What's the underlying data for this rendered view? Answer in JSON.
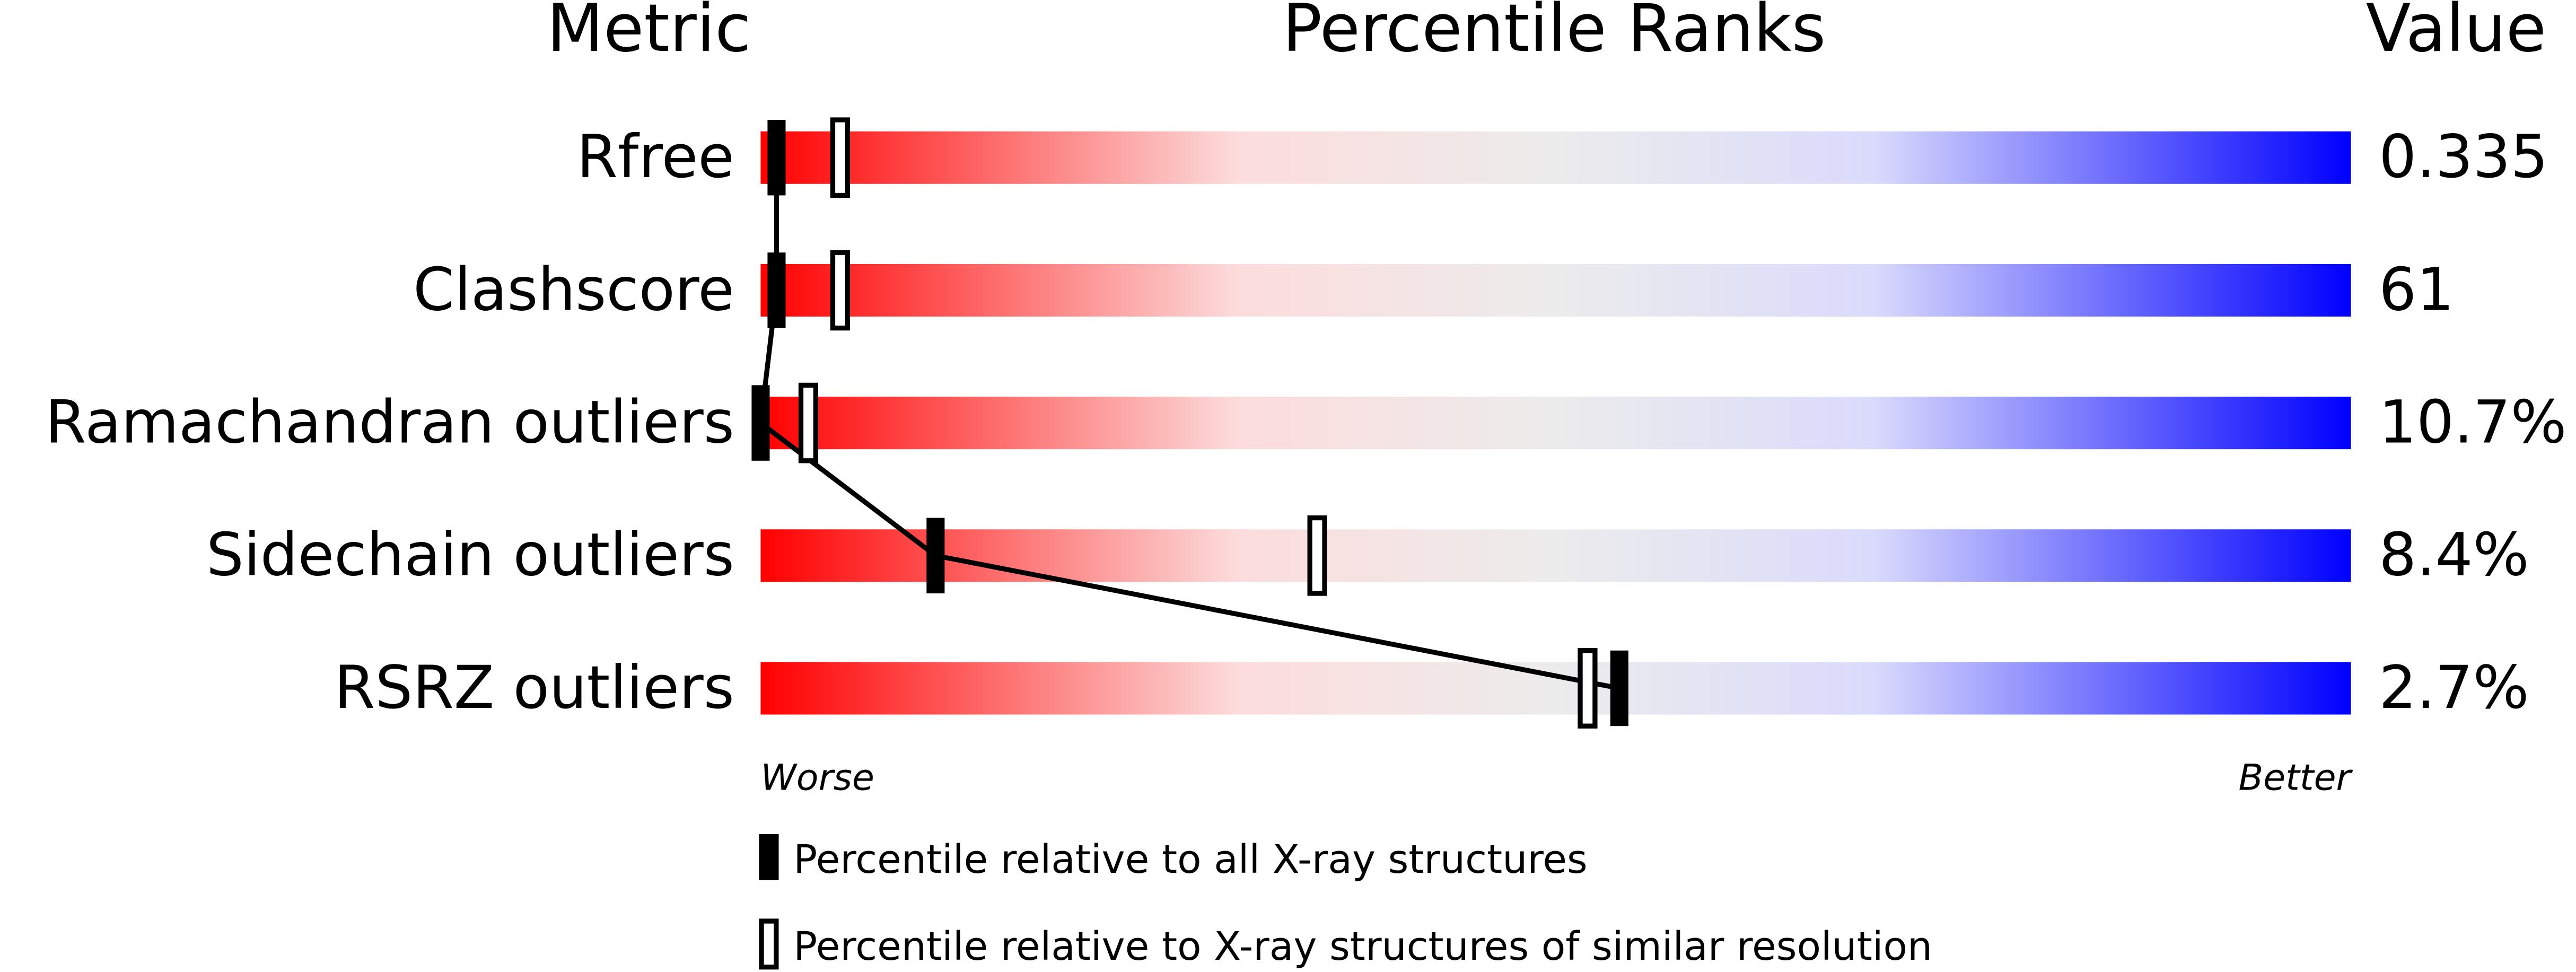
{
  "chart_data": {
    "type": "percentile-slider",
    "column_headers": [
      "Metric",
      "Percentile Ranks",
      "Value"
    ],
    "categories": [
      "Rfree",
      "Clashscore",
      "Ramachandran outliers",
      "Sidechain outliers",
      "RSRZ outliers"
    ],
    "metric_values": [
      "0.335",
      "61",
      "10.7%",
      "8.4%",
      "2.7%"
    ],
    "xlim": [
      0,
      100
    ],
    "axis_labels": {
      "left": "Worse",
      "right": "Better"
    },
    "series": [
      {
        "name": "Percentile relative to all X-ray structures",
        "color": "#000000",
        "marker": "filled",
        "connected": true,
        "values": [
          1,
          1,
          0,
          11,
          54
        ]
      },
      {
        "name": "Percentile relative to X-ray structures of similar resolution",
        "color": "#000000",
        "marker": "open",
        "connected": false,
        "values": [
          5,
          5,
          3,
          35,
          52
        ]
      }
    ]
  }
}
